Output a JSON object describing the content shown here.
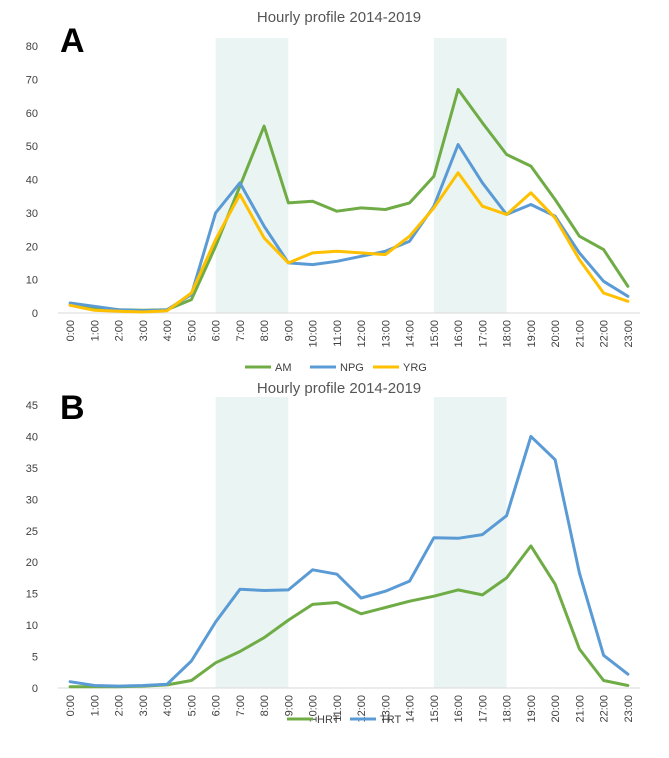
{
  "chart_data": [
    {
      "panel": "A",
      "type": "line",
      "title": "Hourly profile 2014-2019",
      "xlabel": "",
      "ylabel": "",
      "ylim": [
        0,
        80
      ],
      "yticks": [
        0,
        10,
        20,
        30,
        40,
        50,
        60,
        70,
        80
      ],
      "categories": [
        "0:00",
        "1:00",
        "2:00",
        "3:00",
        "4:00",
        "5:00",
        "6:00",
        "7:00",
        "8:00",
        "9:00",
        "10:00",
        "11:00",
        "12:00",
        "13:00",
        "14:00",
        "15:00",
        "16:00",
        "17:00",
        "18:00",
        "19:00",
        "20:00",
        "21:00",
        "22:00",
        "23:00"
      ],
      "shaded_ranges": [
        [
          "6:00",
          "9:00"
        ],
        [
          "15:00",
          "18:00"
        ]
      ],
      "shade_color": "#eaf5f3",
      "grid": false,
      "legend_position": "bottom",
      "series": [
        {
          "name": "AM",
          "color": "#6fac46",
          "values": [
            2.5,
            1.5,
            1,
            0.8,
            1,
            4,
            20,
            38,
            56,
            33,
            33.5,
            30.5,
            31.5,
            31,
            33,
            41,
            67,
            57,
            47.5,
            44,
            34,
            23,
            19,
            8
          ]
        },
        {
          "name": "NPG",
          "color": "#5b9bd5",
          "values": [
            3,
            2,
            1,
            0.7,
            1,
            5.5,
            30,
            39,
            26,
            15,
            14.5,
            15.5,
            17,
            18.5,
            21.5,
            32,
            50.5,
            39,
            29.5,
            32.5,
            29,
            18,
            9.5,
            5
          ]
        },
        {
          "name": "YRG",
          "color": "#ffc000",
          "values": [
            2.3,
            0.8,
            0.5,
            0.3,
            0.7,
            6,
            22,
            35.5,
            22.5,
            15,
            18,
            18.5,
            18,
            17.5,
            23,
            31.5,
            42,
            32,
            29.5,
            36,
            28.5,
            16,
            6,
            3.5
          ]
        }
      ]
    },
    {
      "panel": "B",
      "type": "line",
      "title": "Hourly profile 2014-2019",
      "xlabel": "",
      "ylabel": "",
      "ylim": [
        0,
        45
      ],
      "yticks": [
        0,
        5,
        10,
        15,
        20,
        25,
        30,
        35,
        40,
        45
      ],
      "categories": [
        "0:00",
        "1:00",
        "2:00",
        "3:00",
        "4:00",
        "5:00",
        "6:00",
        "7:00",
        "8:00",
        "9:00",
        "10:00",
        "11:00",
        "12:00",
        "13:00",
        "14:00",
        "15:00",
        "16:00",
        "17:00",
        "18:00",
        "19:00",
        "20:00",
        "21:00",
        "22:00",
        "23:00"
      ],
      "shaded_ranges": [
        [
          "6:00",
          "9:00"
        ],
        [
          "15:00",
          "18:00"
        ]
      ],
      "shade_color": "#eaf5f3",
      "grid": false,
      "legend_position": "bottom",
      "series": [
        {
          "name": "HRT",
          "color": "#6fac46",
          "values": [
            0.2,
            0.2,
            0.2,
            0.3,
            0.5,
            1.2,
            4,
            5.8,
            8,
            10.8,
            13.3,
            13.6,
            11.8,
            12.8,
            13.8,
            14.6,
            15.6,
            14.8,
            17.5,
            22.6,
            16.5,
            6.2,
            1.2,
            0.4
          ]
        },
        {
          "name": "TRT",
          "color": "#5b9bd5",
          "values": [
            1,
            0.4,
            0.3,
            0.4,
            0.6,
            4.3,
            10.5,
            15.7,
            15.5,
            15.6,
            18.8,
            18.1,
            14.3,
            15.4,
            17,
            23.9,
            23.8,
            24.4,
            27.4,
            40,
            36.3,
            18.3,
            5.2,
            2.2
          ]
        }
      ]
    }
  ]
}
